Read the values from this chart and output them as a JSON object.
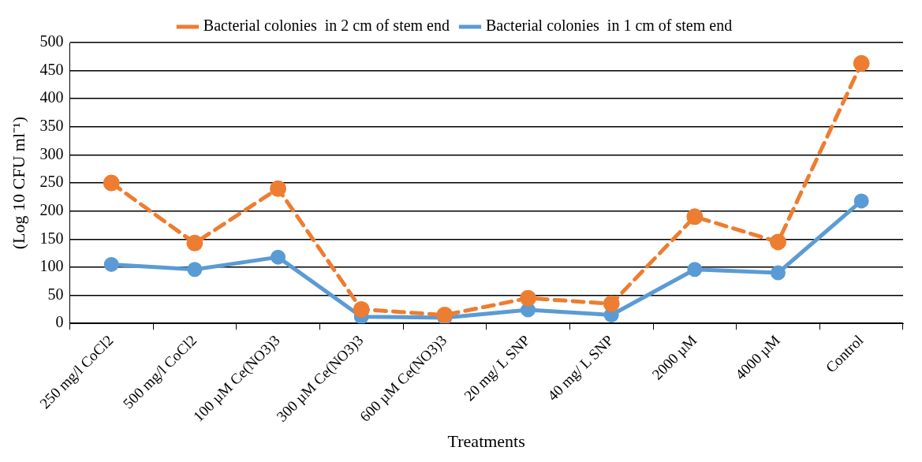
{
  "chart_data": {
    "type": "line",
    "xlabel": "Treatments",
    "ylabel": "(Log 10 CFU ml⁻¹)",
    "categories": [
      "250 mg/l CoCl2",
      "500 mg/l CoCl2",
      "100 µM Ce(NO3)3",
      "300 µM Ce(NO3)3",
      "600 µM Ce(NO3)3",
      "20 mg/ L SNP",
      "40 mg/ L SNP",
      "2000 µM",
      "4000 µM",
      "Control"
    ],
    "series": [
      {
        "name": "Bacterial colonies  in 1 cm of stem end",
        "color": "#5b9bd5",
        "line_style": "solid",
        "values": [
          105,
          96,
          118,
          12,
          10,
          24,
          15,
          96,
          90,
          218
        ]
      },
      {
        "name": "Bacterial colonies  in 2 cm of stem end",
        "color": "#ed7d31",
        "line_style": "dashed",
        "values": [
          250,
          143,
          240,
          25,
          15,
          45,
          35,
          190,
          145,
          463
        ]
      }
    ],
    "ylim": [
      0,
      500
    ],
    "yticks": [
      0,
      50,
      100,
      150,
      200,
      250,
      300,
      350,
      400,
      450,
      500
    ],
    "grid": "y",
    "legend": "top",
    "marker": "circle"
  }
}
